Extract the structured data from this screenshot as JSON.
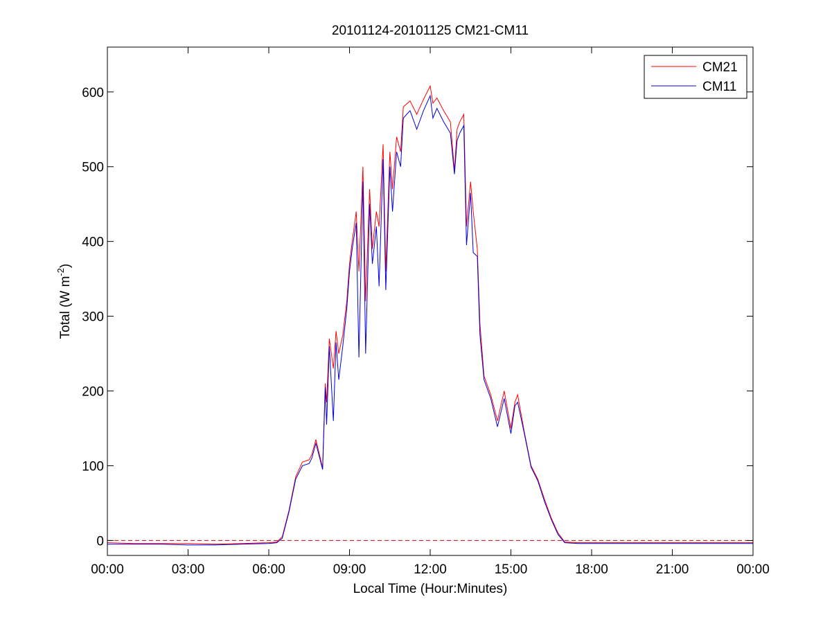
{
  "chart_data": {
    "type": "line",
    "title": "20101124-20101125 CM21-CM11",
    "xlabel": "Local Time (Hour:Minutes)",
    "ylabel": {
      "prefix": "Total (W m",
      "sup": "-2",
      "suffix": ")"
    },
    "xlim": [
      0,
      24
    ],
    "ylim": [
      -20,
      660
    ],
    "x_ticks": [
      {
        "value": 0,
        "label": "00:00"
      },
      {
        "value": 3,
        "label": "03:00"
      },
      {
        "value": 6,
        "label": "06:00"
      },
      {
        "value": 9,
        "label": "09:00"
      },
      {
        "value": 12,
        "label": "12:00"
      },
      {
        "value": 15,
        "label": "15:00"
      },
      {
        "value": 18,
        "label": "18:00"
      },
      {
        "value": 21,
        "label": "21:00"
      },
      {
        "value": 24,
        "label": "00:00"
      }
    ],
    "y_ticks": [
      {
        "value": 0,
        "label": "0"
      },
      {
        "value": 100,
        "label": "100"
      },
      {
        "value": 200,
        "label": "200"
      },
      {
        "value": 300,
        "label": "300"
      },
      {
        "value": 400,
        "label": "400"
      },
      {
        "value": 500,
        "label": "500"
      },
      {
        "value": 600,
        "label": "600"
      }
    ],
    "grid": false,
    "legend_position": "top-right",
    "reference_line": {
      "y": 0,
      "style": "dashed",
      "color": "#cc0000"
    },
    "series": [
      {
        "name": "CM21",
        "color": "#ff0000",
        "x": [
          0,
          1,
          2,
          3,
          4,
          5,
          6.0,
          6.3,
          6.5,
          6.75,
          7.0,
          7.25,
          7.5,
          7.6,
          7.75,
          8.0,
          8.1,
          8.15,
          8.25,
          8.4,
          8.5,
          8.6,
          8.75,
          8.9,
          9.0,
          9.1,
          9.25,
          9.35,
          9.5,
          9.6,
          9.75,
          9.85,
          10.0,
          10.1,
          10.25,
          10.35,
          10.5,
          10.6,
          10.75,
          10.9,
          11.0,
          11.25,
          11.5,
          11.75,
          12.0,
          12.1,
          12.25,
          12.5,
          12.75,
          12.9,
          13.0,
          13.1,
          13.25,
          13.35,
          13.5,
          13.6,
          13.75,
          13.85,
          14.0,
          14.25,
          14.5,
          14.75,
          15.0,
          15.15,
          15.25,
          15.5,
          15.75,
          16.0,
          16.25,
          16.5,
          16.75,
          17.0,
          17.5,
          18,
          19,
          20,
          21,
          22,
          23,
          24
        ],
        "values": [
          -3,
          -4,
          -4,
          -4,
          -5,
          -4,
          -3,
          -2,
          5,
          40,
          85,
          105,
          108,
          115,
          135,
          97,
          210,
          185,
          270,
          230,
          280,
          250,
          275,
          320,
          370,
          400,
          440,
          360,
          500,
          320,
          470,
          390,
          440,
          420,
          530,
          360,
          520,
          470,
          540,
          520,
          580,
          588,
          570,
          590,
          608,
          585,
          592,
          575,
          560,
          495,
          550,
          560,
          570,
          420,
          480,
          440,
          390,
          290,
          220,
          195,
          160,
          200,
          150,
          185,
          195,
          145,
          100,
          82,
          55,
          30,
          10,
          -2,
          -3,
          -3,
          -3,
          -3,
          -3,
          -3,
          -3,
          -3
        ]
      },
      {
        "name": "CM11",
        "color": "#0000dd",
        "x": [
          0,
          1,
          2,
          3,
          4,
          5,
          6.0,
          6.3,
          6.5,
          6.75,
          7.0,
          7.25,
          7.5,
          7.6,
          7.75,
          8.0,
          8.1,
          8.15,
          8.25,
          8.4,
          8.5,
          8.6,
          8.75,
          8.9,
          9.0,
          9.1,
          9.25,
          9.35,
          9.5,
          9.6,
          9.75,
          9.85,
          10.0,
          10.1,
          10.25,
          10.35,
          10.5,
          10.6,
          10.75,
          10.9,
          11.0,
          11.25,
          11.5,
          11.75,
          12.0,
          12.1,
          12.25,
          12.5,
          12.75,
          12.9,
          13.0,
          13.1,
          13.25,
          13.35,
          13.5,
          13.6,
          13.75,
          13.85,
          14.0,
          14.25,
          14.5,
          14.75,
          15.0,
          15.15,
          15.25,
          15.5,
          15.75,
          16.0,
          16.25,
          16.5,
          16.75,
          17.0,
          17.5,
          18,
          19,
          20,
          21,
          22,
          23,
          24
        ],
        "values": [
          -5,
          -5,
          -5,
          -6,
          -6,
          -5,
          -4,
          -3,
          3,
          38,
          82,
          100,
          103,
          110,
          130,
          95,
          205,
          155,
          260,
          160,
          265,
          215,
          260,
          310,
          360,
          390,
          425,
          245,
          480,
          250,
          450,
          370,
          420,
          340,
          510,
          335,
          500,
          440,
          520,
          500,
          565,
          575,
          550,
          575,
          595,
          565,
          578,
          560,
          545,
          490,
          535,
          545,
          555,
          395,
          465,
          385,
          380,
          275,
          215,
          190,
          152,
          190,
          143,
          180,
          185,
          143,
          98,
          80,
          52,
          28,
          8,
          -3,
          -4,
          -4,
          -4,
          -4,
          -4,
          -4,
          -4,
          -4
        ]
      }
    ]
  }
}
